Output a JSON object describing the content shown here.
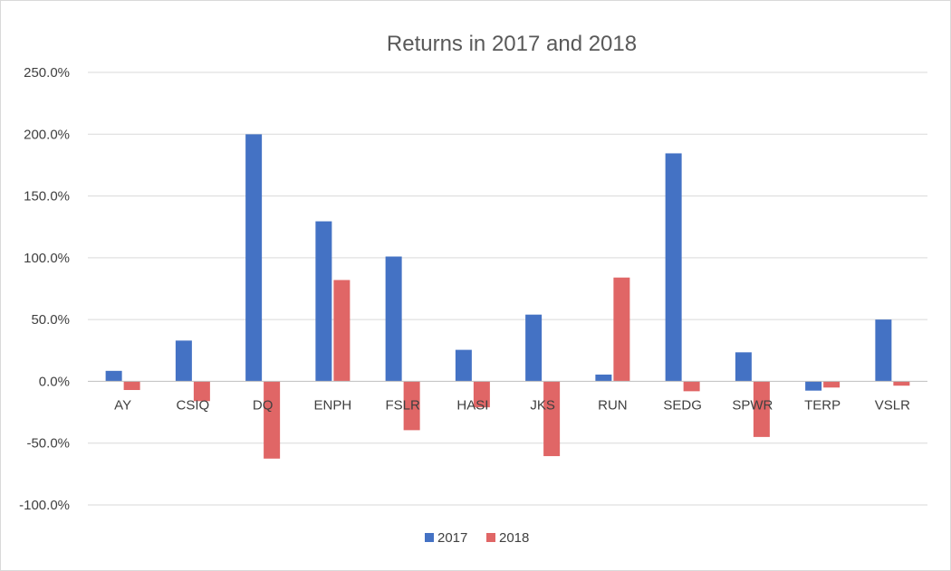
{
  "chart_data": {
    "type": "bar",
    "title": "Returns in 2017 and 2018",
    "xlabel": "",
    "ylabel": "",
    "ylim": [
      -100,
      250
    ],
    "ytick_step": 50,
    "ytick_format": "percent_1dp",
    "grid": true,
    "legend_position": "bottom",
    "categories": [
      "AY",
      "CSIQ",
      "DQ",
      "ENPH",
      "FSLR",
      "HASI",
      "JKS",
      "RUN",
      "SEDG",
      "SPWR",
      "TERP",
      "VSLR"
    ],
    "series": [
      {
        "name": "2017",
        "color": "#4472C4",
        "values": [
          8.5,
          33.0,
          199.9,
          129.5,
          101.0,
          25.5,
          54.0,
          5.5,
          184.5,
          23.5,
          -7.5,
          50.0
        ]
      },
      {
        "name": "2018",
        "color": "#E06666",
        "values": [
          -7.0,
          -16.0,
          -62.5,
          82.0,
          -39.5,
          -21.0,
          -60.5,
          84.0,
          -8.0,
          -45.0,
          -5.0,
          -3.5
        ]
      }
    ]
  }
}
